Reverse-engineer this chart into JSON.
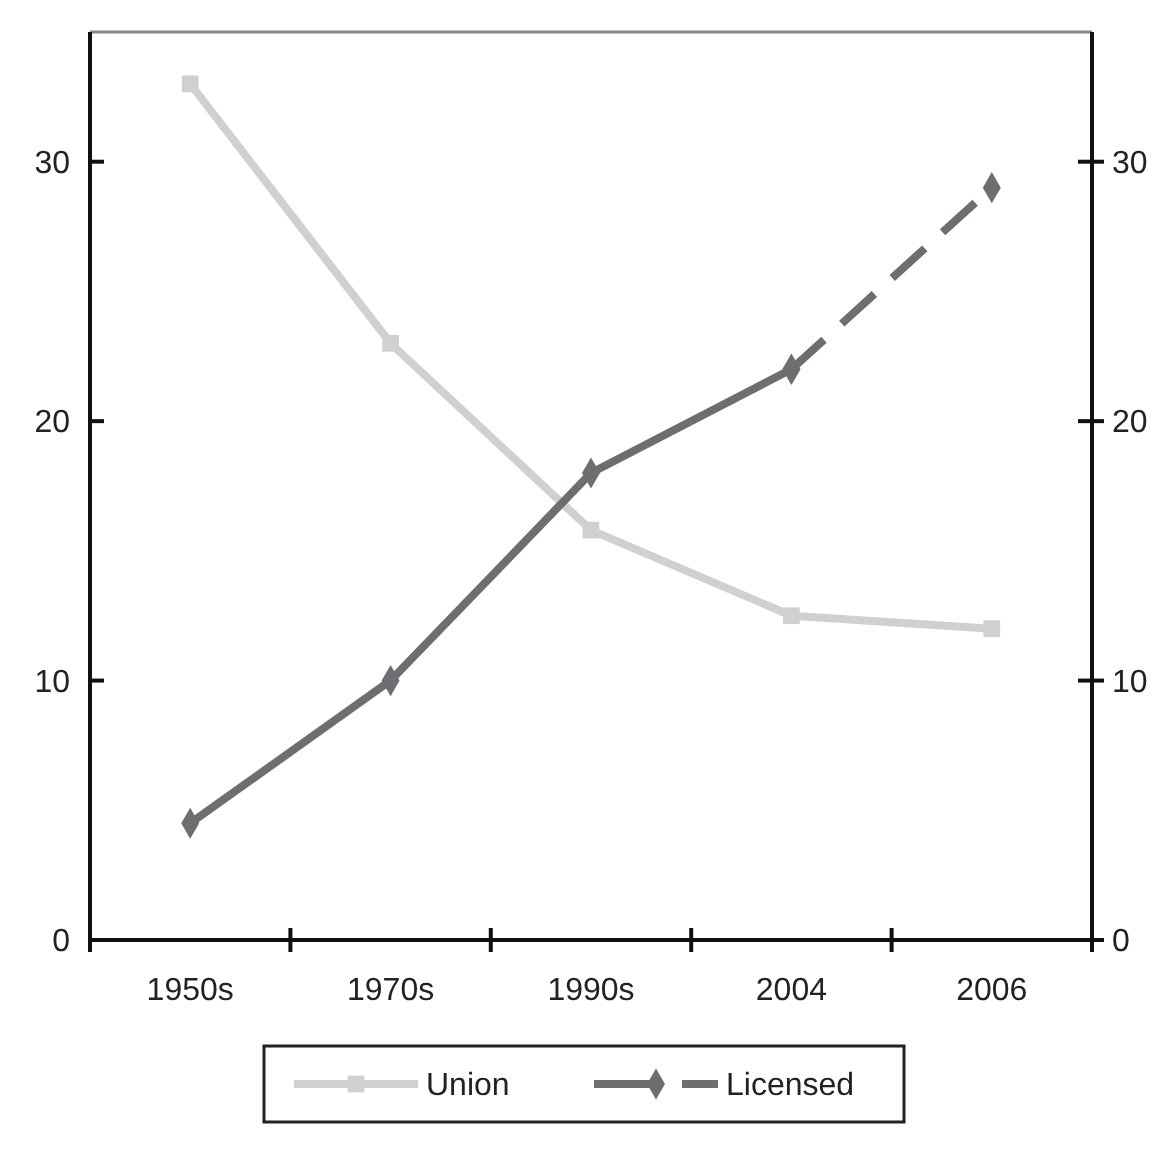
{
  "chart_data": {
    "type": "line",
    "categories": [
      "1950s",
      "1970s",
      "1990s",
      "2004",
      "2006"
    ],
    "series": [
      {
        "name": "Union",
        "color": "#d0d0d2",
        "marker": "square",
        "line_style": "solid",
        "values": [
          33,
          23,
          15.8,
          12.5,
          12
        ]
      },
      {
        "name": "Licensed",
        "color": "#6d6e71",
        "marker": "diamond",
        "line_style": "solid",
        "values": [
          4.5,
          10,
          18,
          22,
          null
        ]
      },
      {
        "color": "#6d6e71",
        "marker": "diamond",
        "line_style": "dashed",
        "values": [
          null,
          null,
          null,
          22,
          29
        ]
      }
    ],
    "ylim": [
      0,
      35
    ],
    "yticks": [
      0,
      10,
      20,
      30
    ],
    "y2lim": [
      0,
      35
    ],
    "y2ticks": [
      0,
      10,
      20,
      30
    ],
    "grid": false,
    "legend": "bottom"
  }
}
